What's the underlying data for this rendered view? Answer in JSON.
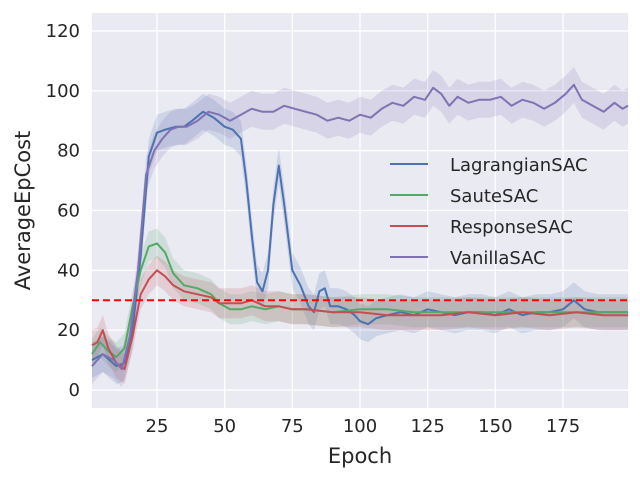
{
  "chart_data": {
    "type": "line",
    "xlabel": "Epoch",
    "ylabel": "AverageEpCost",
    "xlim": [
      1,
      199
    ],
    "ylim": [
      -6,
      126
    ],
    "xticks": [
      25,
      50,
      75,
      100,
      125,
      150,
      175
    ],
    "yticks": [
      0,
      20,
      40,
      60,
      80,
      100,
      120
    ],
    "grid": true,
    "background": "#eaeaf2",
    "legend": "center-right",
    "threshold": {
      "value": 30,
      "color": "#ff0000",
      "style": "dashed"
    },
    "series": [
      {
        "name": "LagrangianSAC",
        "color": "#4c72b0",
        "points": [
          [
            1,
            10
          ],
          [
            5,
            12
          ],
          [
            10,
            8
          ],
          [
            13,
            9
          ],
          [
            16,
            20
          ],
          [
            19,
            45
          ],
          [
            22,
            78
          ],
          [
            25,
            86
          ],
          [
            28,
            87
          ],
          [
            32,
            88
          ],
          [
            35,
            88
          ],
          [
            38,
            90
          ],
          [
            42,
            93
          ],
          [
            46,
            91
          ],
          [
            50,
            88
          ],
          [
            53,
            87
          ],
          [
            56,
            84
          ],
          [
            58,
            70
          ],
          [
            60,
            52
          ],
          [
            62,
            36
          ],
          [
            64,
            33
          ],
          [
            66,
            40
          ],
          [
            68,
            62
          ],
          [
            70,
            75
          ],
          [
            72,
            62
          ],
          [
            75,
            40
          ],
          [
            78,
            35
          ],
          [
            81,
            28
          ],
          [
            83,
            26
          ],
          [
            85,
            33
          ],
          [
            87,
            34
          ],
          [
            89,
            28
          ],
          [
            92,
            28
          ],
          [
            95,
            27
          ],
          [
            98,
            25
          ],
          [
            100,
            23
          ],
          [
            103,
            22
          ],
          [
            106,
            24
          ],
          [
            110,
            25
          ],
          [
            115,
            26
          ],
          [
            120,
            25
          ],
          [
            125,
            27
          ],
          [
            130,
            26
          ],
          [
            135,
            25
          ],
          [
            140,
            26
          ],
          [
            145,
            26
          ],
          [
            150,
            25
          ],
          [
            155,
            27
          ],
          [
            160,
            25
          ],
          [
            165,
            26
          ],
          [
            170,
            26
          ],
          [
            175,
            27
          ],
          [
            179,
            30
          ],
          [
            183,
            27
          ],
          [
            188,
            26
          ],
          [
            193,
            26
          ],
          [
            199,
            26
          ]
        ],
        "spread": 6
      },
      {
        "name": "SauteSAC",
        "color": "#55a868",
        "points": [
          [
            1,
            12
          ],
          [
            4,
            16
          ],
          [
            7,
            13
          ],
          [
            10,
            11
          ],
          [
            13,
            14
          ],
          [
            16,
            28
          ],
          [
            19,
            40
          ],
          [
            22,
            48
          ],
          [
            25,
            49
          ],
          [
            28,
            46
          ],
          [
            31,
            39
          ],
          [
            35,
            35
          ],
          [
            40,
            34
          ],
          [
            45,
            32
          ],
          [
            48,
            29
          ],
          [
            52,
            27
          ],
          [
            56,
            27
          ],
          [
            60,
            28
          ],
          [
            65,
            27
          ],
          [
            70,
            28
          ],
          [
            75,
            27
          ],
          [
            80,
            27
          ],
          [
            90,
            26
          ],
          [
            100,
            27
          ],
          [
            110,
            27
          ],
          [
            120,
            26
          ],
          [
            130,
            26
          ],
          [
            140,
            26
          ],
          [
            150,
            26
          ],
          [
            160,
            26
          ],
          [
            170,
            26
          ],
          [
            180,
            26
          ],
          [
            190,
            26
          ],
          [
            199,
            26
          ]
        ],
        "spread": 5
      },
      {
        "name": "ResponseSAC",
        "color": "#c44e52",
        "points": [
          [
            1,
            15
          ],
          [
            3,
            16
          ],
          [
            5,
            20
          ],
          [
            7,
            14
          ],
          [
            10,
            9
          ],
          [
            13,
            7
          ],
          [
            16,
            18
          ],
          [
            19,
            32
          ],
          [
            22,
            37
          ],
          [
            25,
            40
          ],
          [
            28,
            38
          ],
          [
            31,
            35
          ],
          [
            35,
            33
          ],
          [
            40,
            32
          ],
          [
            45,
            31
          ],
          [
            48,
            29
          ],
          [
            52,
            29
          ],
          [
            56,
            29
          ],
          [
            60,
            30
          ],
          [
            65,
            28
          ],
          [
            70,
            28
          ],
          [
            75,
            27
          ],
          [
            80,
            27
          ],
          [
            90,
            26
          ],
          [
            100,
            26
          ],
          [
            110,
            25
          ],
          [
            120,
            25
          ],
          [
            130,
            25
          ],
          [
            140,
            26
          ],
          [
            150,
            25
          ],
          [
            160,
            26
          ],
          [
            170,
            25
          ],
          [
            180,
            26
          ],
          [
            190,
            25
          ],
          [
            199,
            25
          ]
        ],
        "spread": 5
      },
      {
        "name": "VanillaSAC",
        "color": "#8172b3",
        "points": [
          [
            1,
            8
          ],
          [
            5,
            12
          ],
          [
            9,
            10
          ],
          [
            12,
            7
          ],
          [
            15,
            18
          ],
          [
            18,
            40
          ],
          [
            21,
            72
          ],
          [
            24,
            80
          ],
          [
            27,
            84
          ],
          [
            30,
            87
          ],
          [
            33,
            88
          ],
          [
            36,
            88
          ],
          [
            40,
            90
          ],
          [
            44,
            93
          ],
          [
            48,
            92
          ],
          [
            52,
            90
          ],
          [
            56,
            92
          ],
          [
            60,
            94
          ],
          [
            64,
            93
          ],
          [
            68,
            93
          ],
          [
            72,
            95
          ],
          [
            76,
            94
          ],
          [
            80,
            93
          ],
          [
            84,
            92
          ],
          [
            88,
            90
          ],
          [
            92,
            91
          ],
          [
            96,
            90
          ],
          [
            100,
            92
          ],
          [
            104,
            91
          ],
          [
            108,
            94
          ],
          [
            112,
            96
          ],
          [
            116,
            95
          ],
          [
            120,
            98
          ],
          [
            124,
            97
          ],
          [
            127,
            101
          ],
          [
            130,
            99
          ],
          [
            133,
            95
          ],
          [
            136,
            98
          ],
          [
            140,
            96
          ],
          [
            144,
            97
          ],
          [
            148,
            97
          ],
          [
            152,
            98
          ],
          [
            156,
            95
          ],
          [
            160,
            97
          ],
          [
            164,
            96
          ],
          [
            168,
            94
          ],
          [
            172,
            96
          ],
          [
            176,
            99
          ],
          [
            179,
            102
          ],
          [
            182,
            97
          ],
          [
            186,
            95
          ],
          [
            190,
            93
          ],
          [
            194,
            96
          ],
          [
            197,
            94
          ],
          [
            199,
            95
          ]
        ],
        "spread": 6
      }
    ]
  }
}
